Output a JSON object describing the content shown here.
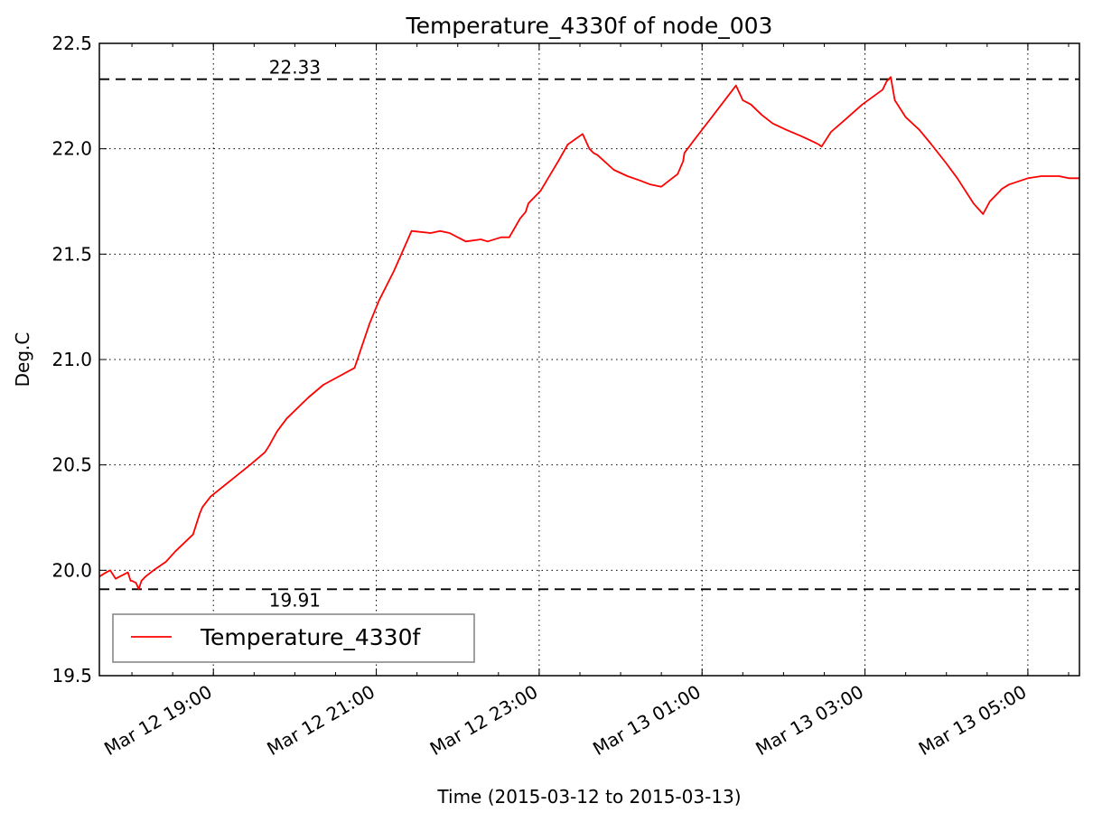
{
  "chart_data": {
    "type": "line",
    "title": "Temperature_4330f of node_003",
    "xlabel": "Time (2015-03-12 to 2015-03-13)",
    "ylabel": "Deg.C",
    "ylim": [
      19.5,
      22.5
    ],
    "yticks": [
      "19.5",
      "20.0",
      "20.5",
      "21.0",
      "21.5",
      "22.0",
      "22.5"
    ],
    "xlim": [
      "2015-03-12T17:36",
      "2015-03-13T05:38"
    ],
    "xticks": [
      "Mar 12 19:00",
      "Mar 12 21:00",
      "Mar 12 23:00",
      "Mar 13 01:00",
      "Mar 13 03:00",
      "Mar 13 05:00"
    ],
    "grid": true,
    "legend_position": "lower-left",
    "colors": {
      "series": "#ff0000",
      "reference": "#000000"
    },
    "reference_lines": [
      {
        "value": 22.33,
        "label": "22.33"
      },
      {
        "value": 19.91,
        "label": "19.91"
      }
    ],
    "series": [
      {
        "name": "Temperature_4330f",
        "x": [
          "2015-03-12T17:36",
          "2015-03-12T17:41",
          "2015-03-12T17:44",
          "2015-03-12T17:48",
          "2015-03-12T17:51",
          "2015-03-12T17:57",
          "2015-03-12T17:59",
          "2015-03-12T18:00",
          "2015-03-12T18:03",
          "2015-03-12T18:05",
          "2015-03-12T18:07",
          "2015-03-12T18:10",
          "2015-03-12T18:16",
          "2015-03-12T18:25",
          "2015-03-12T18:32",
          "2015-03-12T18:45",
          "2015-03-12T18:50",
          "2015-03-12T18:52",
          "2015-03-12T18:58",
          "2015-03-12T19:27",
          "2015-03-12T19:38",
          "2015-03-12T19:41",
          "2015-03-12T19:47",
          "2015-03-12T19:54",
          "2015-03-12T20:10",
          "2015-03-12T20:21",
          "2015-03-12T20:44",
          "2015-03-12T20:55",
          "2015-03-12T21:02",
          "2015-03-12T21:13",
          "2015-03-12T21:26",
          "2015-03-12T21:40",
          "2015-03-12T21:47",
          "2015-03-12T21:54",
          "2015-03-12T22:06",
          "2015-03-12T22:17",
          "2015-03-12T22:22",
          "2015-03-12T22:32",
          "2015-03-12T22:38",
          "2015-03-12T22:46",
          "2015-03-12T22:50",
          "2015-03-12T22:52",
          "2015-03-12T23:01",
          "2015-03-12T23:14",
          "2015-03-12T23:21",
          "2015-03-12T23:32",
          "2015-03-12T23:37",
          "2015-03-12T23:40",
          "2015-03-12T23:43",
          "2015-03-12T23:55",
          "2015-03-13T00:05",
          "2015-03-13T00:14",
          "2015-03-13T00:22",
          "2015-03-13T00:30",
          "2015-03-13T00:42",
          "2015-03-13T00:46",
          "2015-03-13T00:47",
          "2015-03-13T00:54",
          "2015-03-13T01:06",
          "2015-03-13T01:25",
          "2015-03-13T01:30",
          "2015-03-13T01:33",
          "2015-03-13T01:36",
          "2015-03-13T01:44",
          "2015-03-13T01:52",
          "2015-03-13T02:02",
          "2015-03-13T02:13",
          "2015-03-13T02:23",
          "2015-03-13T02:26",
          "2015-03-13T02:28",
          "2015-03-13T02:35",
          "2015-03-13T02:44",
          "2015-03-13T02:58",
          "2015-03-13T03:13",
          "2015-03-13T03:16",
          "2015-03-13T03:19",
          "2015-03-13T03:22",
          "2015-03-13T03:30",
          "2015-03-13T03:40",
          "2015-03-13T03:49",
          "2015-03-13T04:00",
          "2015-03-13T04:08",
          "2015-03-13T04:12",
          "2015-03-13T04:20",
          "2015-03-13T04:27",
          "2015-03-13T04:32",
          "2015-03-13T04:38",
          "2015-03-13T04:41",
          "2015-03-13T04:46",
          "2015-03-13T05:00",
          "2015-03-13T05:10",
          "2015-03-13T05:17",
          "2015-03-13T05:23",
          "2015-03-13T05:30",
          "2015-03-13T05:38"
        ],
        "y": [
          19.97,
          19.99,
          20.0,
          19.96,
          19.97,
          19.99,
          19.95,
          19.95,
          19.94,
          19.91,
          19.95,
          19.97,
          20.0,
          20.04,
          20.09,
          20.17,
          20.27,
          20.3,
          20.35,
          20.5,
          20.56,
          20.59,
          20.66,
          20.72,
          20.82,
          20.88,
          20.96,
          21.17,
          21.28,
          21.42,
          21.61,
          21.6,
          21.61,
          21.6,
          21.56,
          21.57,
          21.56,
          21.58,
          21.58,
          21.67,
          21.7,
          21.74,
          21.8,
          21.94,
          22.02,
          22.07,
          22.0,
          21.98,
          21.97,
          21.9,
          21.87,
          21.85,
          21.83,
          21.82,
          21.88,
          21.94,
          21.98,
          22.04,
          22.14,
          22.3,
          22.23,
          22.22,
          22.21,
          22.16,
          22.12,
          22.09,
          22.06,
          22.03,
          22.02,
          22.01,
          22.08,
          22.13,
          22.21,
          22.28,
          22.32,
          22.34,
          22.23,
          22.15,
          22.09,
          22.02,
          21.93,
          21.86,
          21.82,
          21.74,
          21.69,
          21.75,
          21.79,
          21.81,
          21.83,
          21.86,
          21.87,
          21.87,
          21.87,
          21.86,
          21.86
        ]
      }
    ]
  }
}
